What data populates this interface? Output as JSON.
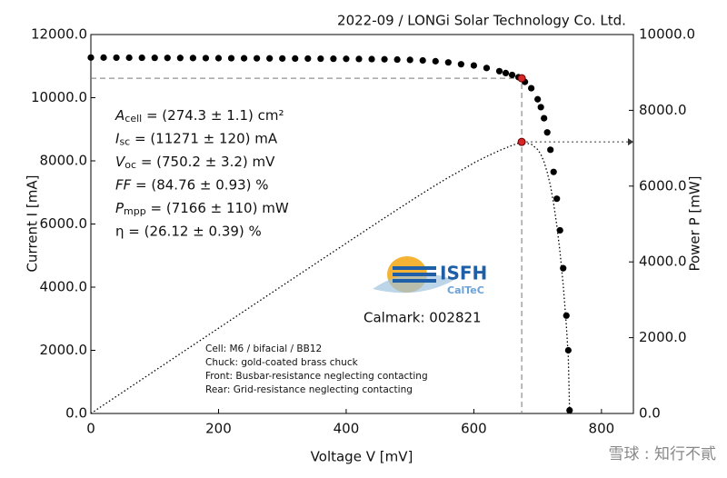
{
  "chart_data": {
    "type": "iv-curve",
    "title": "2022-09 / LONGi Solar Technology Co. Ltd.",
    "xlabel": "Voltage V [mV]",
    "ylabel": "Current I [mA]",
    "y2label": "Power P [mW]",
    "x": [
      0,
      20,
      40,
      60,
      80,
      100,
      120,
      140,
      160,
      180,
      200,
      220,
      240,
      260,
      280,
      300,
      320,
      340,
      360,
      380,
      400,
      420,
      440,
      460,
      480,
      500,
      520,
      540,
      560,
      580,
      600,
      620,
      640,
      650,
      660,
      670,
      675,
      680,
      690,
      700,
      705,
      710,
      715,
      720,
      725,
      730,
      735,
      740,
      745,
      748,
      750
    ],
    "series": [
      {
        "name": "Current",
        "color": "#000000",
        "axis": "y",
        "values": [
          11271,
          11270,
          11268,
          11266,
          11264,
          11262,
          11260,
          11258,
          11256,
          11254,
          11252,
          11250,
          11248,
          11246,
          11244,
          11242,
          11240,
          11238,
          11236,
          11233,
          11230,
          11226,
          11222,
          11216,
          11208,
          11197,
          11180,
          11155,
          11117,
          11060,
          11020,
          10940,
          10840,
          10780,
          10720,
          10650,
          10616,
          10500,
          10300,
          9950,
          9700,
          9350,
          8900,
          8350,
          7650,
          6800,
          5800,
          4600,
          3100,
          2000,
          100
        ]
      },
      {
        "name": "Power",
        "color": "#000000",
        "axis": "y2",
        "values": [
          0,
          225.4,
          450.7,
          676.0,
          901.1,
          1126.2,
          1351.2,
          1576.1,
          1801.0,
          2025.7,
          2250.4,
          2475.0,
          2699.5,
          2924.0,
          3148.3,
          3372.6,
          3596.8,
          3820.9,
          4045.0,
          4268.5,
          4492.0,
          4714.9,
          4937.7,
          5159.4,
          5379.8,
          5598.5,
          5813.6,
          6023.7,
          6225.5,
          6414.8,
          6612.0,
          6782.8,
          6937.6,
          7007.0,
          7075.2,
          7135.5,
          7165.8,
          7140.0,
          7107.0,
          6965.0,
          6838.5,
          6638.5,
          6363.5,
          6012.0,
          5546.3,
          4964.0,
          4263.0,
          3404.0,
          2309.5,
          1496.0,
          75.0
        ]
      }
    ],
    "mpp": {
      "x": 675,
      "current": 10616,
      "power": 7166,
      "color": "#d62728"
    },
    "xlim": [
      0,
      850
    ],
    "xticks": [
      0,
      200,
      400,
      600,
      800
    ],
    "ylim": [
      0,
      12000
    ],
    "yticks": [
      {
        "value": 0,
        "label": "0.0"
      },
      {
        "value": 2000,
        "label": "2000.0"
      },
      {
        "value": 4000,
        "label": "4000.0"
      },
      {
        "value": 6000,
        "label": "6000.0"
      },
      {
        "value": 8000,
        "label": "8000.0"
      },
      {
        "value": 10000,
        "label": "10000.0"
      },
      {
        "value": 12000,
        "label": "12000.0"
      }
    ],
    "y2lim": [
      0,
      10000
    ],
    "y2ticks": [
      {
        "value": 0,
        "label": "0.0"
      },
      {
        "value": 2000,
        "label": "2000.0"
      },
      {
        "value": 4000,
        "label": "4000.0"
      },
      {
        "value": 6000,
        "label": "6000.0"
      },
      {
        "value": 8000,
        "label": "8000.0"
      },
      {
        "value": 10000,
        "label": "10000.0"
      }
    ],
    "parameters": [
      {
        "symbol": "A",
        "subscript": "cell",
        "text": " = (274.3 ± 1.1) cm²"
      },
      {
        "symbol": "I",
        "subscript": "sc",
        "text": " = (11271 ± 120) mA"
      },
      {
        "symbol": "V",
        "subscript": "oc",
        "text": " = (750.2 ± 3.2) mV"
      },
      {
        "symbol": "FF",
        "text": " = (84.76 ± 0.93) %"
      },
      {
        "symbol": "P",
        "subscript": "mpp",
        "text": " = (7166 ± 110) mW"
      },
      {
        "symbol": "η",
        "text": " = (26.12 ± 0.39) %"
      }
    ],
    "logo": {
      "name": "ISFH",
      "sub": "CalTeC"
    },
    "calmark": "Calmark: 002821",
    "notes": [
      "Cell: M6 / bifacial / BB12",
      "Chuck: gold-coated brass chuck",
      "Front: Busbar-resistance neglecting contacting",
      "Rear: Grid-resistance neglecting contacting"
    ],
    "watermark": "雪球 : 知行不貳"
  }
}
